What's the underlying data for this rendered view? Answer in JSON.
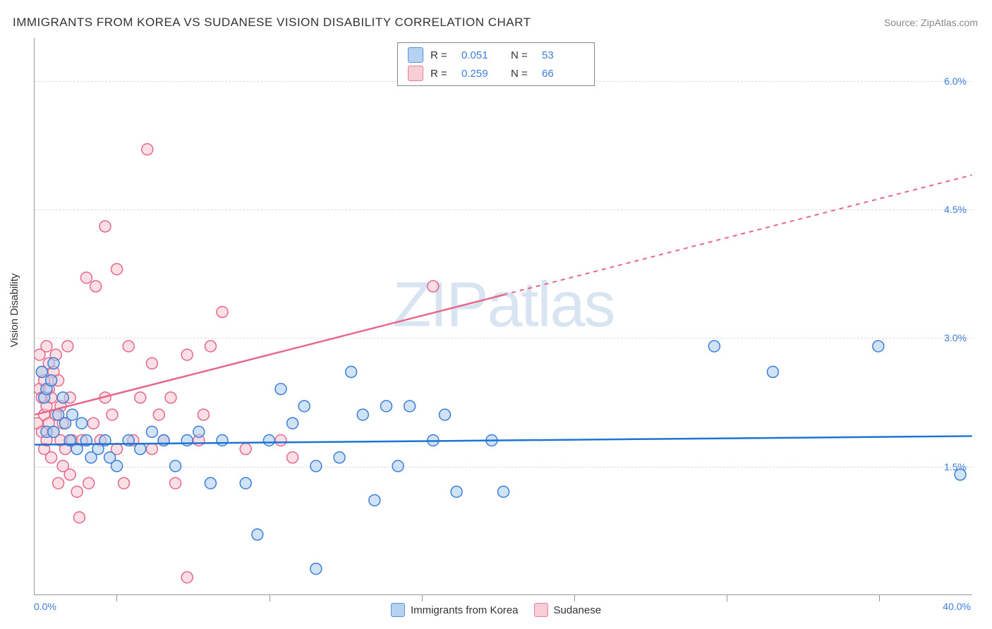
{
  "title": "IMMIGRANTS FROM KOREA VS SUDANESE VISION DISABILITY CORRELATION CHART",
  "source_label": "Source:",
  "source_name": "ZipAtlas.com",
  "y_axis_label": "Vision Disability",
  "watermark_a": "ZIP",
  "watermark_b": "atlas",
  "chart": {
    "type": "scatter",
    "xlim": [
      0,
      40
    ],
    "ylim": [
      0,
      6.5
    ],
    "x_origin_label": "0.0%",
    "x_max_label": "40.0%",
    "y_ticks": [
      1.5,
      3.0,
      4.5,
      6.0
    ],
    "y_tick_labels": [
      "1.5%",
      "3.0%",
      "4.5%",
      "6.0%"
    ],
    "x_tick_positions": [
      3.5,
      10,
      16.5,
      23,
      29.5,
      36
    ],
    "grid_color": "#dcdcdc",
    "background_color": "#ffffff",
    "axis_value_color": "#3b7dd8"
  },
  "series": [
    {
      "name": "Immigrants from Korea",
      "fill": "#a9ccee",
      "stroke": "#3b7dd8",
      "fill_opacity": 0.55,
      "marker_radius": 8,
      "R": "0.051",
      "N": "53",
      "trend": {
        "x1": 0,
        "y1": 1.75,
        "x2": 40,
        "y2": 1.85,
        "color": "#1e74d2"
      },
      "points": [
        [
          0.3,
          2.6
        ],
        [
          0.4,
          2.3
        ],
        [
          0.5,
          2.4
        ],
        [
          0.5,
          1.9
        ],
        [
          0.7,
          2.5
        ],
        [
          0.8,
          1.9
        ],
        [
          0.8,
          2.7
        ],
        [
          1.0,
          2.1
        ],
        [
          1.2,
          2.3
        ],
        [
          1.3,
          2.0
        ],
        [
          1.5,
          1.8
        ],
        [
          1.6,
          2.1
        ],
        [
          1.8,
          1.7
        ],
        [
          2.0,
          2.0
        ],
        [
          2.2,
          1.8
        ],
        [
          2.4,
          1.6
        ],
        [
          2.7,
          1.7
        ],
        [
          3.0,
          1.8
        ],
        [
          3.2,
          1.6
        ],
        [
          3.5,
          1.5
        ],
        [
          4.0,
          1.8
        ],
        [
          4.5,
          1.7
        ],
        [
          5.0,
          1.9
        ],
        [
          5.5,
          1.8
        ],
        [
          6.0,
          1.5
        ],
        [
          6.5,
          1.8
        ],
        [
          7.0,
          1.9
        ],
        [
          7.5,
          1.3
        ],
        [
          8.0,
          1.8
        ],
        [
          9.0,
          1.3
        ],
        [
          9.5,
          0.7
        ],
        [
          10.0,
          1.8
        ],
        [
          10.5,
          2.4
        ],
        [
          11.0,
          2.0
        ],
        [
          11.5,
          2.2
        ],
        [
          12.0,
          1.5
        ],
        [
          12.0,
          0.3
        ],
        [
          13.0,
          1.6
        ],
        [
          13.5,
          2.6
        ],
        [
          14.0,
          2.1
        ],
        [
          14.5,
          1.1
        ],
        [
          15.0,
          2.2
        ],
        [
          15.5,
          1.5
        ],
        [
          16.0,
          2.2
        ],
        [
          17.0,
          1.8
        ],
        [
          17.5,
          2.1
        ],
        [
          18.0,
          1.2
        ],
        [
          19.5,
          1.8
        ],
        [
          20.0,
          1.2
        ],
        [
          29.0,
          2.9
        ],
        [
          31.5,
          2.6
        ],
        [
          36.0,
          2.9
        ],
        [
          39.5,
          1.4
        ]
      ]
    },
    {
      "name": "Sudanese",
      "fill": "#f6c5cf",
      "stroke": "#e6678a",
      "fill_opacity": 0.55,
      "marker_radius": 8,
      "R": "0.259",
      "N": "66",
      "trend": {
        "x1": 0,
        "y1": 2.1,
        "x2": 20,
        "y2": 3.5,
        "color": "#e6678a"
      },
      "trend_extend": {
        "x1": 20,
        "y1": 3.5,
        "x2": 40,
        "y2": 4.9
      },
      "points": [
        [
          0.1,
          2.0
        ],
        [
          0.2,
          2.4
        ],
        [
          0.2,
          2.8
        ],
        [
          0.3,
          1.9
        ],
        [
          0.3,
          2.3
        ],
        [
          0.3,
          2.6
        ],
        [
          0.4,
          1.7
        ],
        [
          0.4,
          2.1
        ],
        [
          0.4,
          2.5
        ],
        [
          0.5,
          2.9
        ],
        [
          0.5,
          1.8
        ],
        [
          0.5,
          2.2
        ],
        [
          0.6,
          2.0
        ],
        [
          0.6,
          2.4
        ],
        [
          0.6,
          2.7
        ],
        [
          0.7,
          1.6
        ],
        [
          0.7,
          2.3
        ],
        [
          0.8,
          2.6
        ],
        [
          0.8,
          1.9
        ],
        [
          0.9,
          2.8
        ],
        [
          0.9,
          2.1
        ],
        [
          1.0,
          2.5
        ],
        [
          1.0,
          1.3
        ],
        [
          1.1,
          1.8
        ],
        [
          1.1,
          2.2
        ],
        [
          1.2,
          1.5
        ],
        [
          1.2,
          2.0
        ],
        [
          1.3,
          1.7
        ],
        [
          1.4,
          2.9
        ],
        [
          1.5,
          1.4
        ],
        [
          1.5,
          2.3
        ],
        [
          1.6,
          1.8
        ],
        [
          1.8,
          1.2
        ],
        [
          1.9,
          0.9
        ],
        [
          2.0,
          1.8
        ],
        [
          2.2,
          3.7
        ],
        [
          2.3,
          1.3
        ],
        [
          2.5,
          2.0
        ],
        [
          2.6,
          3.6
        ],
        [
          2.8,
          1.8
        ],
        [
          3.0,
          2.3
        ],
        [
          3.0,
          4.3
        ],
        [
          3.3,
          2.1
        ],
        [
          3.5,
          3.8
        ],
        [
          3.5,
          1.7
        ],
        [
          3.8,
          1.3
        ],
        [
          4.0,
          2.9
        ],
        [
          4.2,
          1.8
        ],
        [
          4.5,
          2.3
        ],
        [
          4.8,
          5.2
        ],
        [
          5.0,
          1.7
        ],
        [
          5.0,
          2.7
        ],
        [
          5.3,
          2.1
        ],
        [
          5.5,
          1.8
        ],
        [
          5.8,
          2.3
        ],
        [
          6.0,
          1.3
        ],
        [
          6.5,
          2.8
        ],
        [
          6.5,
          0.2
        ],
        [
          7.0,
          1.8
        ],
        [
          7.2,
          2.1
        ],
        [
          7.5,
          2.9
        ],
        [
          8.0,
          3.3
        ],
        [
          9.0,
          1.7
        ],
        [
          10.5,
          1.8
        ],
        [
          11.0,
          1.6
        ],
        [
          17.0,
          3.6
        ]
      ]
    }
  ],
  "legend_top": {
    "r_label": "R =",
    "n_label": "N ="
  }
}
